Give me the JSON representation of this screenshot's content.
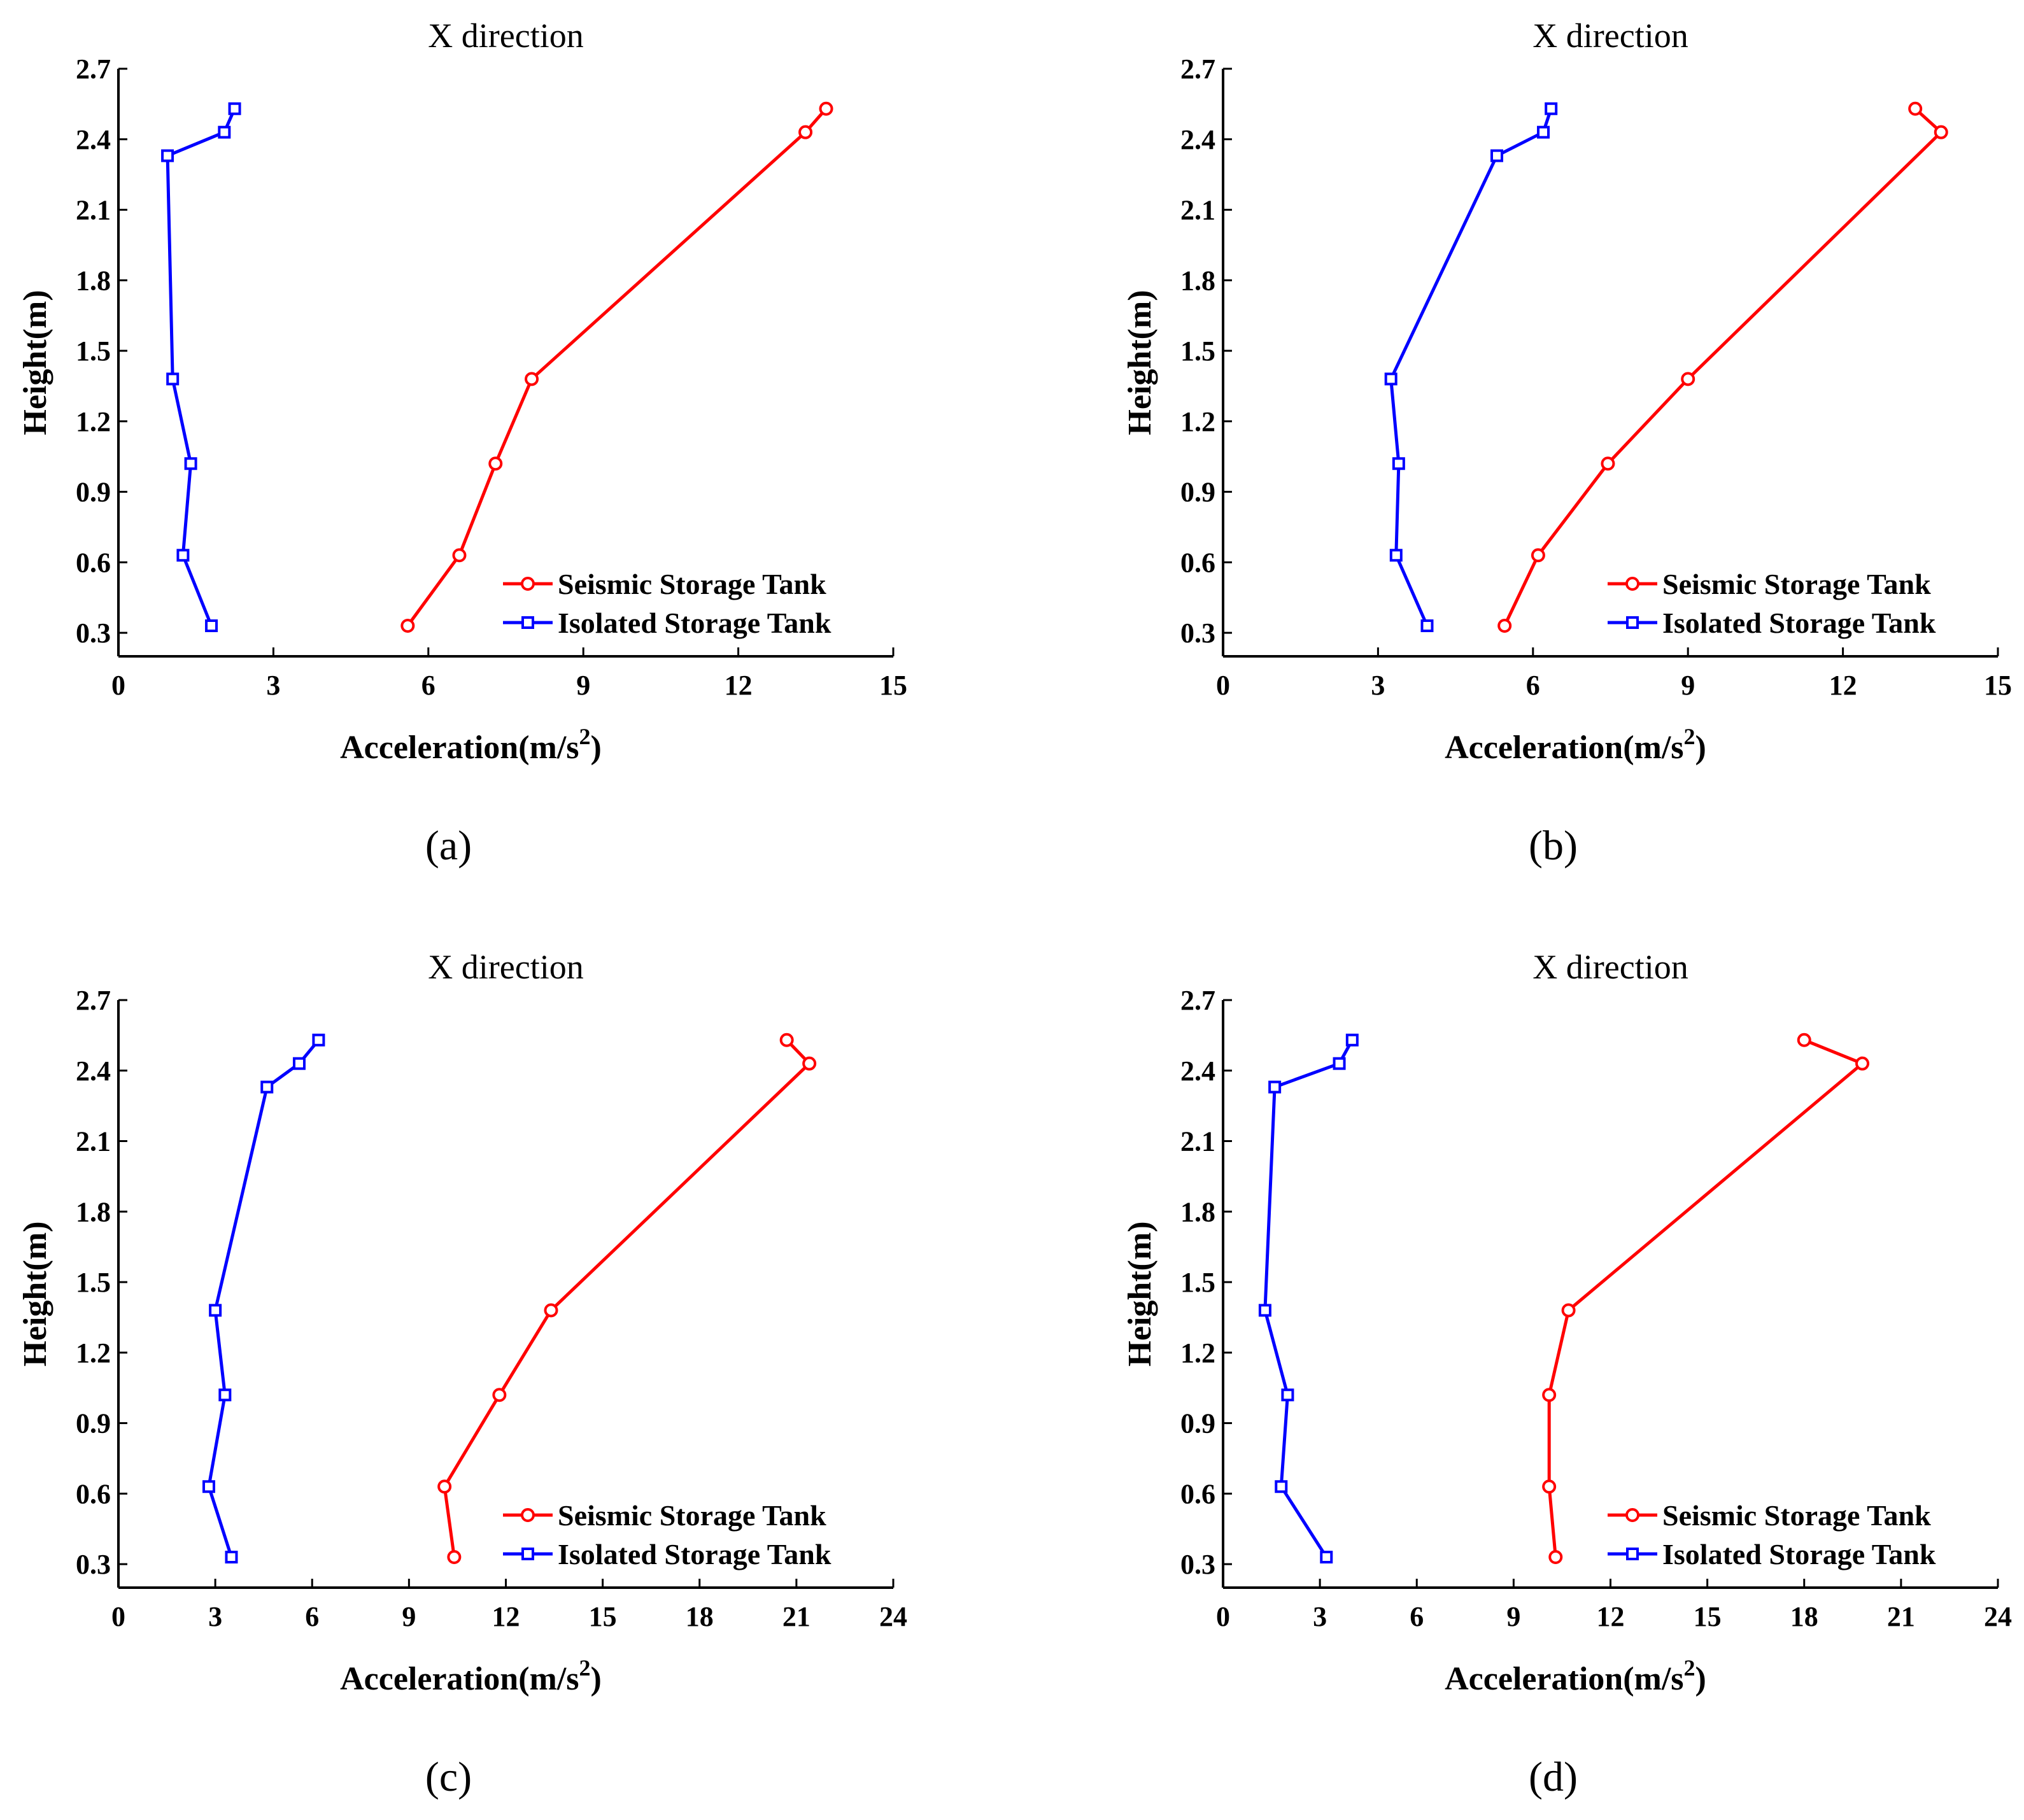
{
  "figure": {
    "panel_labels": [
      "(a)",
      "(b)",
      "(c)",
      "(d)"
    ]
  },
  "colors": {
    "seismic": "#ff0000",
    "isolated": "#0000ff"
  },
  "chart_data": [
    {
      "type": "line",
      "title": "X direction",
      "xlabel": "Acceleration(m/s",
      "xlabel_superscript": "2",
      "xlabel_suffix": ")",
      "ylabel": "Height(m)",
      "xlim": [
        0,
        15
      ],
      "ylim": [
        0.2,
        2.7
      ],
      "xticks": [
        0,
        3,
        6,
        9,
        12,
        15
      ],
      "yticks": [
        0.3,
        0.6,
        0.9,
        1.2,
        1.5,
        1.8,
        2.1,
        2.4,
        2.7
      ],
      "xtick_labels": [
        "0",
        "3",
        "6",
        "9",
        "12",
        "15"
      ],
      "ytick_labels": [
        "0.3",
        "0.6",
        "0.9",
        "1.2",
        "1.5",
        "1.8",
        "2.1",
        "2.4",
        "2.7"
      ],
      "legend_position": "bottom-right",
      "series": [
        {
          "name": "Seismic Storage Tank",
          "marker": "circle",
          "points": [
            [
              5.6,
              0.33
            ],
            [
              6.6,
              0.63
            ],
            [
              7.3,
              1.02
            ],
            [
              8.0,
              1.38
            ],
            [
              13.3,
              2.43
            ],
            [
              13.7,
              2.53
            ]
          ]
        },
        {
          "name": "Isolated Storage Tank",
          "marker": "square",
          "points": [
            [
              1.8,
              0.33
            ],
            [
              1.25,
              0.63
            ],
            [
              1.4,
              1.02
            ],
            [
              1.05,
              1.38
            ],
            [
              0.95,
              2.33
            ],
            [
              2.05,
              2.43
            ],
            [
              2.25,
              2.53
            ]
          ]
        }
      ]
    },
    {
      "type": "line",
      "title": "X direction",
      "xlabel": "Acceleration(m/s",
      "xlabel_superscript": "2",
      "xlabel_suffix": ")",
      "ylabel": "Height(m)",
      "xlim": [
        0,
        15
      ],
      "ylim": [
        0.2,
        2.7
      ],
      "xticks": [
        0,
        3,
        6,
        9,
        12,
        15
      ],
      "yticks": [
        0.3,
        0.6,
        0.9,
        1.2,
        1.5,
        1.8,
        2.1,
        2.4,
        2.7
      ],
      "xtick_labels": [
        "0",
        "3",
        "6",
        "9",
        "12",
        "15"
      ],
      "ytick_labels": [
        "0.3",
        "0.6",
        "0.9",
        "1.2",
        "1.5",
        "1.8",
        "2.1",
        "2.4",
        "2.7"
      ],
      "legend_position": "bottom-right",
      "series": [
        {
          "name": "Seismic Storage Tank",
          "marker": "circle",
          "points": [
            [
              5.45,
              0.33
            ],
            [
              6.1,
              0.63
            ],
            [
              7.45,
              1.02
            ],
            [
              9.0,
              1.38
            ],
            [
              13.9,
              2.43
            ],
            [
              13.4,
              2.53
            ]
          ]
        },
        {
          "name": "Isolated Storage Tank",
          "marker": "square",
          "points": [
            [
              3.95,
              0.33
            ],
            [
              3.35,
              0.63
            ],
            [
              3.4,
              1.02
            ],
            [
              3.25,
              1.38
            ],
            [
              5.3,
              2.33
            ],
            [
              6.2,
              2.43
            ],
            [
              6.35,
              2.53
            ]
          ]
        }
      ]
    },
    {
      "type": "line",
      "title": "X direction",
      "xlabel": "Acceleration(m/s",
      "xlabel_superscript": "2",
      "xlabel_suffix": ")",
      "ylabel": "Height(m)",
      "xlim": [
        0,
        24
      ],
      "ylim": [
        0.2,
        2.7
      ],
      "xticks": [
        0,
        3,
        6,
        9,
        12,
        15,
        18,
        21,
        24
      ],
      "yticks": [
        0.3,
        0.6,
        0.9,
        1.2,
        1.5,
        1.8,
        2.1,
        2.4,
        2.7
      ],
      "xtick_labels": [
        "0",
        "3",
        "6",
        "9",
        "12",
        "15",
        "18",
        "21",
        "24"
      ],
      "ytick_labels": [
        "0.3",
        "0.6",
        "0.9",
        "1.2",
        "1.5",
        "1.8",
        "2.1",
        "2.4",
        "2.7"
      ],
      "legend_position": "bottom-right",
      "series": [
        {
          "name": "Seismic Storage Tank",
          "marker": "circle",
          "points": [
            [
              10.4,
              0.33
            ],
            [
              10.1,
              0.63
            ],
            [
              11.8,
              1.02
            ],
            [
              13.4,
              1.38
            ],
            [
              21.4,
              2.43
            ],
            [
              20.7,
              2.53
            ]
          ]
        },
        {
          "name": "Isolated Storage Tank",
          "marker": "square",
          "points": [
            [
              3.5,
              0.33
            ],
            [
              2.8,
              0.63
            ],
            [
              3.3,
              1.02
            ],
            [
              3.0,
              1.38
            ],
            [
              4.6,
              2.33
            ],
            [
              5.6,
              2.43
            ],
            [
              6.2,
              2.53
            ]
          ]
        }
      ]
    },
    {
      "type": "line",
      "title": "X direction",
      "xlabel": "Acceleration(m/s",
      "xlabel_superscript": "2",
      "xlabel_suffix": ")",
      "ylabel": "Height(m)",
      "xlim": [
        0,
        24
      ],
      "ylim": [
        0.2,
        2.7
      ],
      "xticks": [
        0,
        3,
        6,
        9,
        12,
        15,
        18,
        21,
        24
      ],
      "yticks": [
        0.3,
        0.6,
        0.9,
        1.2,
        1.5,
        1.8,
        2.1,
        2.4,
        2.7
      ],
      "xtick_labels": [
        "0",
        "3",
        "6",
        "9",
        "12",
        "15",
        "18",
        "21",
        "24"
      ],
      "ytick_labels": [
        "0.3",
        "0.6",
        "0.9",
        "1.2",
        "1.5",
        "1.8",
        "2.1",
        "2.4",
        "2.7"
      ],
      "legend_position": "bottom-right",
      "series": [
        {
          "name": "Seismic Storage Tank",
          "marker": "circle",
          "points": [
            [
              10.3,
              0.33
            ],
            [
              10.1,
              0.63
            ],
            [
              10.1,
              1.02
            ],
            [
              10.7,
              1.38
            ],
            [
              19.8,
              2.43
            ],
            [
              18.0,
              2.53
            ]
          ]
        },
        {
          "name": "Isolated Storage Tank",
          "marker": "square",
          "points": [
            [
              3.2,
              0.33
            ],
            [
              1.8,
              0.63
            ],
            [
              2.0,
              1.02
            ],
            [
              1.3,
              1.38
            ],
            [
              1.6,
              2.33
            ],
            [
              3.6,
              2.43
            ],
            [
              4.0,
              2.53
            ]
          ]
        }
      ]
    }
  ]
}
